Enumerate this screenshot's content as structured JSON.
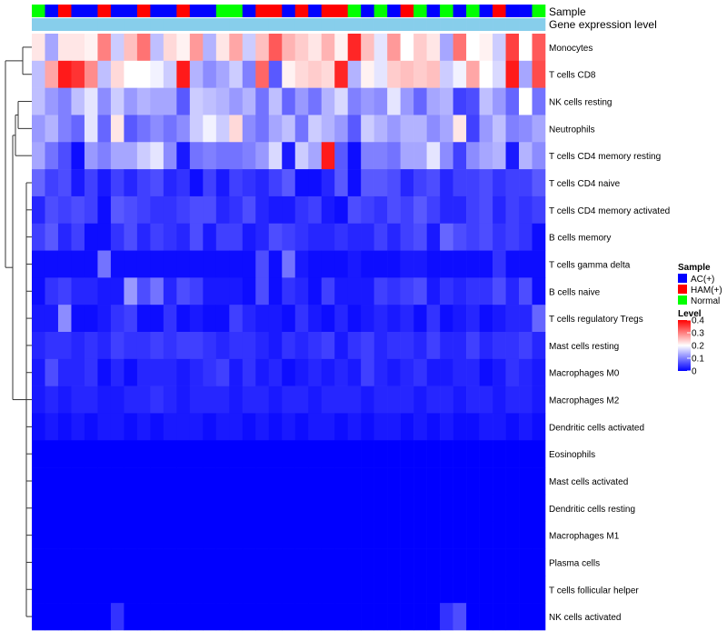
{
  "chart_data": {
    "type": "heatmap",
    "title": "",
    "annotation_tracks": [
      "Sample",
      "Gene expression level"
    ],
    "rows": [
      "Monocytes",
      "T cells CD8",
      "NK cells resting",
      "Neutrophils",
      "T cells CD4 memory resting",
      "T cells CD4 naive",
      "T cells CD4 memory activated",
      "B cells memory",
      "T cells gamma delta",
      "B cells naive",
      "T cells regulatory  Tregs",
      "Mast cells resting",
      "Macrophages M0",
      "Macrophages M2",
      "Dendritic cells activated",
      "Eosinophils",
      "Mast cells activated",
      "Dendritic cells resting",
      "Macrophages M1",
      "Plasma cells",
      "T cells follicular helper",
      "NK cells activated"
    ],
    "sample_groups": [
      "Normal",
      "AC(+)",
      "HAM(+)",
      "AC(+)",
      "AC(+)",
      "HAM(+)",
      "AC(+)",
      "AC(+)",
      "HAM(+)",
      "AC(+)",
      "AC(+)",
      "HAM(+)",
      "AC(+)",
      "AC(+)",
      "Normal",
      "Normal",
      "AC(+)",
      "HAM(+)",
      "HAM(+)",
      "AC(+)",
      "HAM(+)",
      "AC(+)",
      "HAM(+)",
      "HAM(+)",
      "Normal",
      "AC(+)",
      "Normal",
      "AC(+)",
      "HAM(+)",
      "Normal",
      "AC(+)",
      "Normal",
      "AC(+)",
      "Normal",
      "AC(+)",
      "HAM(+)",
      "AC(+)",
      "AC(+)",
      "Normal"
    ],
    "values": [
      [
        0.22,
        0.13,
        0.22,
        0.22,
        0.21,
        0.3,
        0.16,
        0.25,
        0.31,
        0.15,
        0.23,
        0.21,
        0.28,
        0.14,
        0.22,
        0.27,
        0.16,
        0.25,
        0.33,
        0.26,
        0.24,
        0.22,
        0.26,
        0.21,
        0.37,
        0.25,
        0.18,
        0.28,
        0.2,
        0.24,
        0.22,
        0.13,
        0.31,
        0.2,
        0.21,
        0.16,
        0.35,
        0.2,
        0.33
      ],
      [
        0.15,
        0.27,
        0.38,
        0.36,
        0.29,
        0.15,
        0.23,
        0.2,
        0.2,
        0.19,
        0.16,
        0.38,
        0.14,
        0.11,
        0.13,
        0.16,
        0.1,
        0.32,
        0.07,
        0.21,
        0.23,
        0.24,
        0.23,
        0.37,
        0.14,
        0.21,
        0.18,
        0.24,
        0.25,
        0.24,
        0.25,
        0.16,
        0.19,
        0.27,
        0.2,
        0.17,
        0.38,
        0.13,
        0.34
      ],
      [
        0.15,
        0.12,
        0.1,
        0.15,
        0.18,
        0.11,
        0.16,
        0.12,
        0.14,
        0.13,
        0.13,
        0.07,
        0.16,
        0.15,
        0.14,
        0.12,
        0.14,
        0.09,
        0.15,
        0.08,
        0.12,
        0.09,
        0.14,
        0.17,
        0.1,
        0.12,
        0.11,
        0.18,
        0.12,
        0.08,
        0.13,
        0.14,
        0.05,
        0.06,
        0.15,
        0.12,
        0.08,
        0.2,
        0.09
      ],
      [
        0.12,
        0.14,
        0.1,
        0.08,
        0.18,
        0.08,
        0.22,
        0.07,
        0.09,
        0.11,
        0.09,
        0.11,
        0.16,
        0.19,
        0.16,
        0.23,
        0.11,
        0.09,
        0.13,
        0.15,
        0.09,
        0.16,
        0.14,
        0.12,
        0.07,
        0.16,
        0.14,
        0.12,
        0.14,
        0.14,
        0.11,
        0.13,
        0.22,
        0.05,
        0.12,
        0.15,
        0.1,
        0.11,
        0.13
      ],
      [
        0.13,
        0.09,
        0.06,
        0.01,
        0.12,
        0.1,
        0.13,
        0.13,
        0.16,
        0.18,
        0.11,
        0.02,
        0.09,
        0.1,
        0.09,
        0.09,
        0.1,
        0.12,
        0.17,
        0.02,
        0.16,
        0.13,
        0.38,
        0.07,
        0.01,
        0.1,
        0.1,
        0.09,
        0.13,
        0.13,
        0.18,
        0.11,
        0.05,
        0.11,
        0.13,
        0.14,
        0.02,
        0.14,
        0.11
      ],
      [
        0.08,
        0.05,
        0.06,
        0.02,
        0.05,
        0.02,
        0.05,
        0.03,
        0.05,
        0.06,
        0.03,
        0.04,
        0.01,
        0.05,
        0.02,
        0.05,
        0.04,
        0.03,
        0.05,
        0.07,
        0.01,
        0.01,
        0.03,
        0.07,
        0.01,
        0.07,
        0.07,
        0.06,
        0.03,
        0.05,
        0.06,
        0.03,
        0.05,
        0.05,
        0.06,
        0.04,
        0.05,
        0.05,
        0.07
      ],
      [
        0.03,
        0.06,
        0.05,
        0.06,
        0.05,
        0.01,
        0.07,
        0.06,
        0.05,
        0.04,
        0.04,
        0.05,
        0.06,
        0.06,
        0.03,
        0.04,
        0.06,
        0.03,
        0.02,
        0.02,
        0.04,
        0.05,
        0.02,
        0.01,
        0.06,
        0.05,
        0.04,
        0.06,
        0.05,
        0.07,
        0.05,
        0.03,
        0.03,
        0.05,
        0.06,
        0.03,
        0.05,
        0.04,
        0.05
      ],
      [
        0.05,
        0.07,
        0.03,
        0.05,
        0.01,
        0.01,
        0.04,
        0.06,
        0.03,
        0.05,
        0.04,
        0.03,
        0.06,
        0.02,
        0.05,
        0.05,
        0.02,
        0.03,
        0.06,
        0.05,
        0.04,
        0.03,
        0.03,
        0.04,
        0.03,
        0.03,
        0.05,
        0.03,
        0.05,
        0.06,
        0.02,
        0.08,
        0.06,
        0.05,
        0.06,
        0.04,
        0.05,
        0.04,
        0.01
      ],
      [
        0.01,
        0.01,
        0.01,
        0.01,
        0.01,
        0.09,
        0.01,
        0.01,
        0.01,
        0.01,
        0.01,
        0.01,
        0.01,
        0.01,
        0.01,
        0.01,
        0.01,
        0.06,
        0.01,
        0.09,
        0.02,
        0.01,
        0.01,
        0.01,
        0.02,
        0.01,
        0.01,
        0.01,
        0.02,
        0.02,
        0.01,
        0.01,
        0.01,
        0.01,
        0.01,
        0.04,
        0.01,
        0.01,
        0.01
      ],
      [
        0.01,
        0.04,
        0.05,
        0.03,
        0.03,
        0.02,
        0.02,
        0.12,
        0.06,
        0.09,
        0.03,
        0.06,
        0.05,
        0.02,
        0.02,
        0.02,
        0.01,
        0.06,
        0.01,
        0.04,
        0.03,
        0.01,
        0.05,
        0.02,
        0.02,
        0.02,
        0.05,
        0.04,
        0.05,
        0.06,
        0.02,
        0.04,
        0.03,
        0.04,
        0.04,
        0.06,
        0.03,
        0.06,
        0.01
      ],
      [
        0.02,
        0.02,
        0.11,
        0.01,
        0.01,
        0.02,
        0.04,
        0.05,
        0.01,
        0.01,
        0.04,
        0.01,
        0.02,
        0.01,
        0.01,
        0.05,
        0.03,
        0.02,
        0.02,
        0.01,
        0.04,
        0.02,
        0.01,
        0.03,
        0.01,
        0.02,
        0.03,
        0.02,
        0.03,
        0.01,
        0.04,
        0.01,
        0.02,
        0.03,
        0.01,
        0.02,
        0.03,
        0.03,
        0.08
      ],
      [
        0.03,
        0.04,
        0.04,
        0.03,
        0.04,
        0.03,
        0.05,
        0.04,
        0.04,
        0.05,
        0.04,
        0.05,
        0.05,
        0.04,
        0.03,
        0.04,
        0.04,
        0.03,
        0.02,
        0.04,
        0.03,
        0.04,
        0.05,
        0.02,
        0.04,
        0.05,
        0.03,
        0.04,
        0.04,
        0.03,
        0.05,
        0.03,
        0.03,
        0.05,
        0.03,
        0.04,
        0.04,
        0.05,
        0.03
      ],
      [
        0.02,
        0.06,
        0.03,
        0.03,
        0.04,
        0.01,
        0.03,
        0.01,
        0.03,
        0.03,
        0.03,
        0.02,
        0.03,
        0.04,
        0.05,
        0.02,
        0.04,
        0.02,
        0.03,
        0.01,
        0.02,
        0.03,
        0.02,
        0.03,
        0.02,
        0.05,
        0.03,
        0.02,
        0.03,
        0.04,
        0.02,
        0.02,
        0.03,
        0.03,
        0.01,
        0.02,
        0.04,
        0.03,
        0.02
      ],
      [
        0.02,
        0.03,
        0.02,
        0.03,
        0.03,
        0.02,
        0.02,
        0.03,
        0.03,
        0.04,
        0.03,
        0.02,
        0.03,
        0.03,
        0.03,
        0.02,
        0.03,
        0.03,
        0.02,
        0.03,
        0.03,
        0.02,
        0.03,
        0.03,
        0.03,
        0.02,
        0.03,
        0.03,
        0.03,
        0.02,
        0.03,
        0.03,
        0.02,
        0.03,
        0.03,
        0.02,
        0.03,
        0.03,
        0.02
      ],
      [
        0.01,
        0.02,
        0.01,
        0.02,
        0.01,
        0.02,
        0.02,
        0.01,
        0.02,
        0.01,
        0.02,
        0.02,
        0.02,
        0.01,
        0.02,
        0.02,
        0.01,
        0.02,
        0.01,
        0.02,
        0.01,
        0.02,
        0.02,
        0.01,
        0.02,
        0.01,
        0.02,
        0.02,
        0.01,
        0.02,
        0.01,
        0.02,
        0.01,
        0.01,
        0.02,
        0.02,
        0.01,
        0.02,
        0.01
      ],
      [
        0.0,
        0.0,
        0.0,
        0.0,
        0.0,
        0.0,
        0.0,
        0.0,
        0.0,
        0.0,
        0.0,
        0.0,
        0.0,
        0.0,
        0.0,
        0.0,
        0.0,
        0.0,
        0.0,
        0.0,
        0.0,
        0.0,
        0.0,
        0.0,
        0.0,
        0.0,
        0.0,
        0.0,
        0.0,
        0.0,
        0.0,
        0.0,
        0.0,
        0.0,
        0.0,
        0.0,
        0.0,
        0.0,
        0.0
      ],
      [
        0.0,
        0.0,
        0.0,
        0.0,
        0.0,
        0.0,
        0.0,
        0.0,
        0.0,
        0.0,
        0.0,
        0.0,
        0.0,
        0.0,
        0.0,
        0.0,
        0.0,
        0.0,
        0.0,
        0.0,
        0.0,
        0.0,
        0.0,
        0.0,
        0.0,
        0.0,
        0.0,
        0.0,
        0.0,
        0.0,
        0.0,
        0.0,
        0.0,
        0.0,
        0.0,
        0.0,
        0.0,
        0.0,
        0.0
      ],
      [
        0.0,
        0.0,
        0.0,
        0.0,
        0.0,
        0.0,
        0.0,
        0.0,
        0.0,
        0.0,
        0.0,
        0.0,
        0.0,
        0.0,
        0.0,
        0.0,
        0.0,
        0.0,
        0.0,
        0.0,
        0.0,
        0.0,
        0.0,
        0.0,
        0.0,
        0.0,
        0.0,
        0.0,
        0.0,
        0.0,
        0.0,
        0.0,
        0.0,
        0.0,
        0.0,
        0.0,
        0.0,
        0.0,
        0.0
      ],
      [
        0.0,
        0.0,
        0.0,
        0.0,
        0.0,
        0.0,
        0.0,
        0.0,
        0.0,
        0.0,
        0.0,
        0.0,
        0.0,
        0.0,
        0.0,
        0.0,
        0.0,
        0.0,
        0.0,
        0.0,
        0.0,
        0.0,
        0.0,
        0.0,
        0.0,
        0.0,
        0.0,
        0.0,
        0.0,
        0.0,
        0.0,
        0.0,
        0.0,
        0.0,
        0.0,
        0.0,
        0.0,
        0.0,
        0.0
      ],
      [
        0.0,
        0.0,
        0.0,
        0.0,
        0.0,
        0.0,
        0.0,
        0.0,
        0.0,
        0.0,
        0.0,
        0.0,
        0.0,
        0.0,
        0.0,
        0.0,
        0.0,
        0.0,
        0.0,
        0.0,
        0.0,
        0.0,
        0.0,
        0.0,
        0.0,
        0.0,
        0.0,
        0.0,
        0.0,
        0.0,
        0.0,
        0.0,
        0.0,
        0.0,
        0.0,
        0.0,
        0.0,
        0.0,
        0.0
      ],
      [
        0.0,
        0.0,
        0.0,
        0.0,
        0.0,
        0.0,
        0.0,
        0.0,
        0.0,
        0.0,
        0.0,
        0.0,
        0.0,
        0.0,
        0.0,
        0.0,
        0.0,
        0.0,
        0.0,
        0.0,
        0.0,
        0.0,
        0.0,
        0.0,
        0.0,
        0.0,
        0.0,
        0.0,
        0.0,
        0.0,
        0.0,
        0.0,
        0.0,
        0.0,
        0.0,
        0.0,
        0.0,
        0.0,
        0.0
      ],
      [
        0.0,
        0.0,
        0.0,
        0.0,
        0.0,
        0.0,
        0.04,
        0.0,
        0.0,
        0.0,
        0.0,
        0.0,
        0.0,
        0.0,
        0.0,
        0.0,
        0.0,
        0.0,
        0.0,
        0.0,
        0.0,
        0.0,
        0.0,
        0.0,
        0.0,
        0.0,
        0.0,
        0.0,
        0.0,
        0.0,
        0.0,
        0.04,
        0.06,
        0.0,
        0.0,
        0.0,
        0.0,
        0.0,
        0.0
      ]
    ],
    "color_scale": {
      "min": 0,
      "mid": 0.2,
      "max": 0.4,
      "low_color": "#0000ff",
      "mid_color": "#ffffff",
      "high_color": "#ff0000"
    },
    "gene_expression_color": "#87ceeb",
    "legend": {
      "sample_title": "Sample",
      "sample_items": [
        {
          "label": "AC(+)",
          "color": "#0000ff"
        },
        {
          "label": "HAM(+)",
          "color": "#ff0000"
        },
        {
          "label": "Normal",
          "color": "#00ff00"
        }
      ],
      "level_title": "Level",
      "level_ticks": [
        "0.4",
        "0.3",
        "0.2",
        "0.1",
        "0"
      ],
      "level_tick_values": [
        0.4,
        0.3,
        0.2,
        0.1,
        0
      ],
      "placement": "right"
    }
  }
}
